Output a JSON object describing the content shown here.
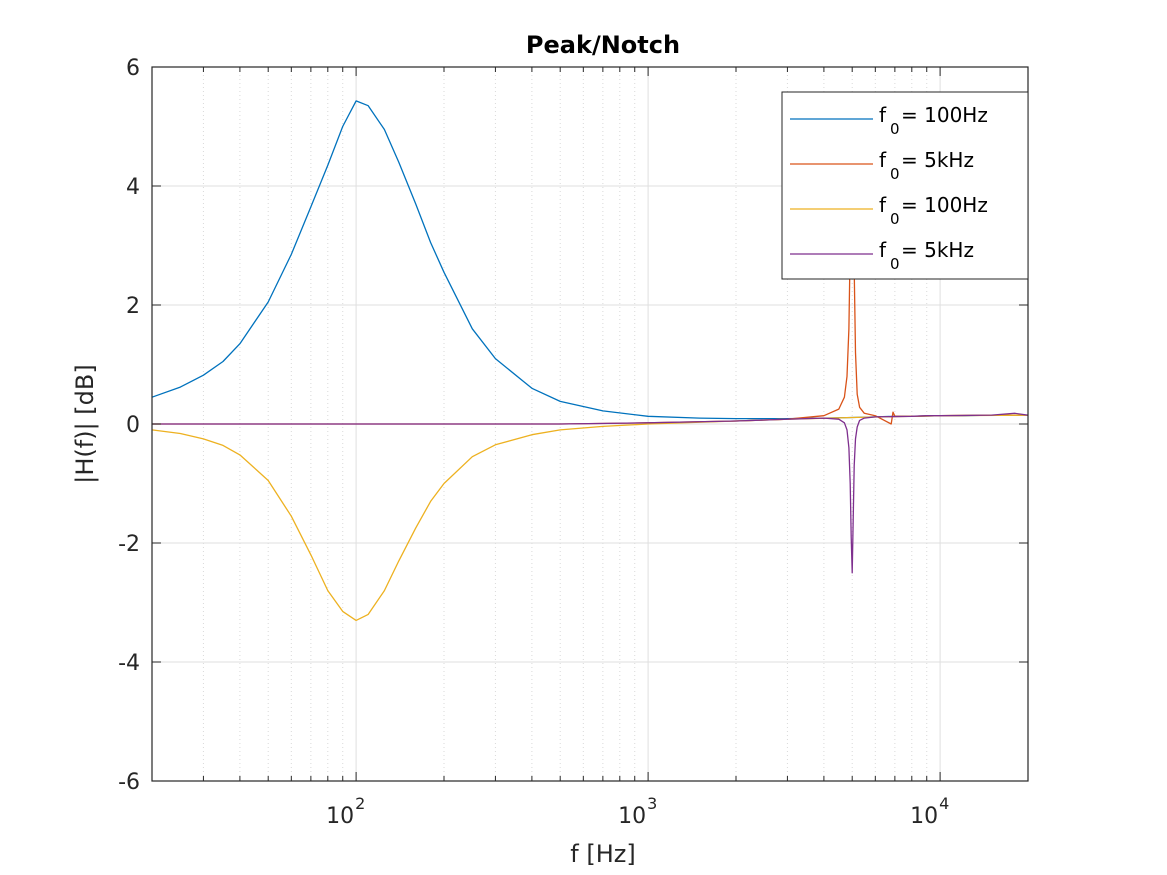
{
  "chart_data": {
    "type": "line",
    "title": "Peak/Notch",
    "xlabel": "f [Hz]",
    "ylabel": "|H(f)| [dB]",
    "xscale": "log",
    "xlim": [
      20,
      20000
    ],
    "ylim": [
      -6,
      6
    ],
    "yticks": [
      -6,
      -4,
      -2,
      0,
      2,
      4,
      6
    ],
    "ytick_labels": [
      "-6",
      "-4",
      "-2",
      "0",
      "2",
      "4",
      "6"
    ],
    "xticks": [
      100,
      1000,
      10000
    ],
    "xtick_labels": [
      {
        "base": "10",
        "exp": "2"
      },
      {
        "base": "10",
        "exp": "3"
      },
      {
        "base": "10",
        "exp": "4"
      }
    ],
    "grid": true,
    "minor_grid": true,
    "legend_position": "top-right",
    "series": [
      {
        "name": "f0 = 100Hz",
        "legend_main": "f",
        "legend_sub": "0",
        "legend_rest": " = 100Hz",
        "color": "#0072bd",
        "x": [
          20,
          25,
          30,
          35,
          40,
          50,
          60,
          70,
          80,
          90,
          100,
          110,
          125,
          140,
          160,
          180,
          200,
          250,
          300,
          400,
          500,
          700,
          1000,
          1500,
          2000,
          3000,
          4000,
          5000,
          6000,
          7000,
          8000,
          10000,
          12000,
          15000,
          20000
        ],
        "y": [
          0.45,
          0.62,
          0.82,
          1.05,
          1.35,
          2.05,
          2.85,
          3.65,
          4.35,
          5.0,
          5.43,
          5.35,
          4.95,
          4.4,
          3.7,
          3.05,
          2.55,
          1.6,
          1.1,
          0.6,
          0.38,
          0.22,
          0.13,
          0.1,
          0.09,
          0.09,
          0.1,
          0.11,
          0.12,
          0.13,
          0.13,
          0.14,
          0.14,
          0.15,
          0.15
        ]
      },
      {
        "name": "f0 = 5kHz",
        "legend_main": "f",
        "legend_sub": "0",
        "legend_rest": " = 5kHz",
        "color": "#d95319",
        "x": [
          20,
          100,
          500,
          1000,
          2000,
          3000,
          4000,
          4500,
          4700,
          4800,
          4870,
          4920,
          4960,
          5000,
          5040,
          5080,
          5130,
          5200,
          5300,
          5500,
          6000,
          6800,
          6900,
          7000,
          8000,
          10000,
          15000,
          20000
        ],
        "y": [
          0.0,
          0.0,
          0.0,
          0.02,
          0.05,
          0.08,
          0.14,
          0.25,
          0.45,
          0.8,
          1.6,
          3.0,
          4.6,
          5.2,
          4.3,
          2.6,
          1.2,
          0.5,
          0.28,
          0.18,
          0.14,
          0.0,
          0.2,
          0.13,
          0.13,
          0.14,
          0.15,
          0.15
        ]
      },
      {
        "name": "f0 = 100Hz",
        "legend_main": "f",
        "legend_sub": "0",
        "legend_rest": " = 100Hz",
        "color": "#edb120",
        "x": [
          20,
          25,
          30,
          35,
          40,
          50,
          60,
          70,
          80,
          90,
          100,
          110,
          125,
          140,
          160,
          180,
          200,
          250,
          300,
          400,
          500,
          700,
          1000,
          1500,
          2000,
          3000,
          5000,
          10000,
          20000
        ],
        "y": [
          -0.1,
          -0.16,
          -0.25,
          -0.36,
          -0.52,
          -0.95,
          -1.55,
          -2.2,
          -2.8,
          -3.15,
          -3.3,
          -3.2,
          -2.8,
          -2.3,
          -1.75,
          -1.3,
          -1.0,
          -0.55,
          -0.35,
          -0.18,
          -0.1,
          -0.04,
          0.0,
          0.03,
          0.05,
          0.08,
          0.11,
          0.14,
          0.15
        ]
      },
      {
        "name": "f0 = 5kHz",
        "legend_main": "f",
        "legend_sub": "0",
        "legend_rest": " = 5kHz",
        "color": "#7e2f8e",
        "x": [
          20,
          100,
          500,
          1000,
          2000,
          3000,
          4000,
          4500,
          4700,
          4800,
          4870,
          4920,
          4960,
          5000,
          5040,
          5080,
          5130,
          5200,
          5300,
          5500,
          6000,
          8000,
          9000,
          10000,
          15000,
          18000,
          20000
        ],
        "y": [
          0.0,
          0.0,
          0.0,
          0.02,
          0.05,
          0.08,
          0.1,
          0.08,
          0.02,
          -0.1,
          -0.4,
          -1.0,
          -1.9,
          -2.5,
          -1.6,
          -0.7,
          -0.25,
          -0.05,
          0.06,
          0.1,
          0.12,
          0.13,
          0.14,
          0.14,
          0.15,
          0.18,
          0.15
        ]
      }
    ]
  }
}
